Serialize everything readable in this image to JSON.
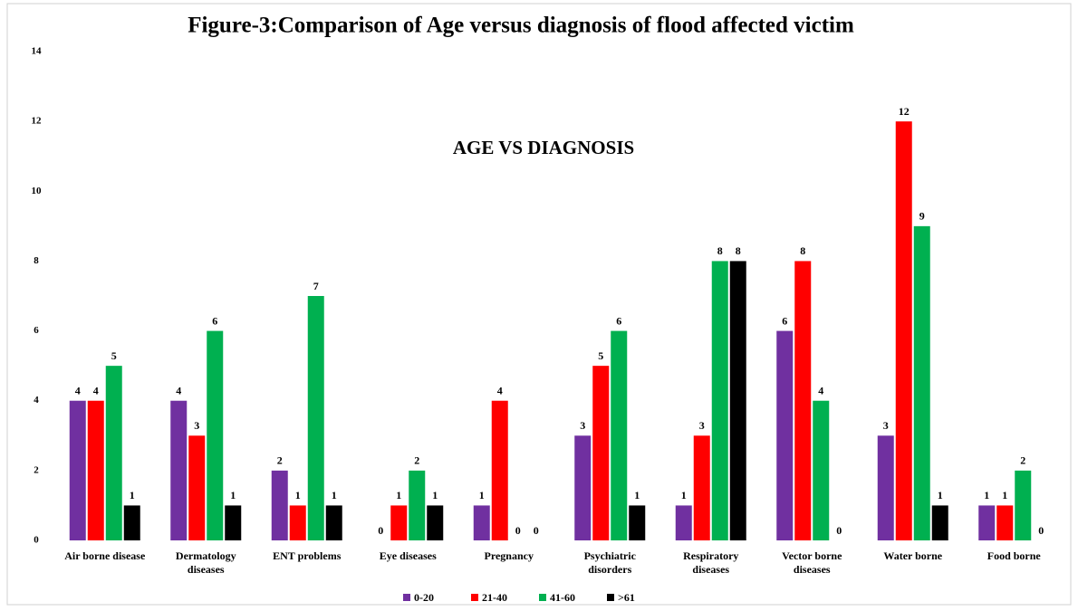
{
  "chart_data": {
    "type": "bar",
    "title": "Figure-3:Comparison of  Age versus diagnosis of flood affected victim",
    "subtitle": "AGE VS DIAGNOSIS",
    "categories": [
      "Air borne disease",
      "Dermatology diseases",
      "ENT problems",
      "Eye diseases",
      "Pregnancy",
      "Psychiatric disorders",
      "Respiratory diseases",
      "Vector borne diseases",
      "Water borne",
      "Food borne"
    ],
    "series": [
      {
        "name": "0-20",
        "color": "#7030a0",
        "values": [
          4,
          4,
          2,
          0,
          1,
          3,
          1,
          6,
          3,
          1
        ]
      },
      {
        "name": "21-40",
        "color": "#ff0000",
        "values": [
          4,
          3,
          1,
          1,
          4,
          5,
          3,
          8,
          12,
          1
        ]
      },
      {
        "name": "41-60",
        "color": "#00b050",
        "values": [
          5,
          6,
          7,
          2,
          0,
          6,
          8,
          4,
          9,
          2
        ]
      },
      {
        "name": ">61",
        "color": "#000000",
        "values": [
          1,
          1,
          1,
          1,
          0,
          1,
          8,
          0,
          1,
          0
        ]
      }
    ],
    "ylim": [
      0,
      14
    ],
    "yticks": [
      0,
      2,
      4,
      6,
      8,
      10,
      12,
      14
    ],
    "grid": false,
    "legend": "bottom"
  }
}
